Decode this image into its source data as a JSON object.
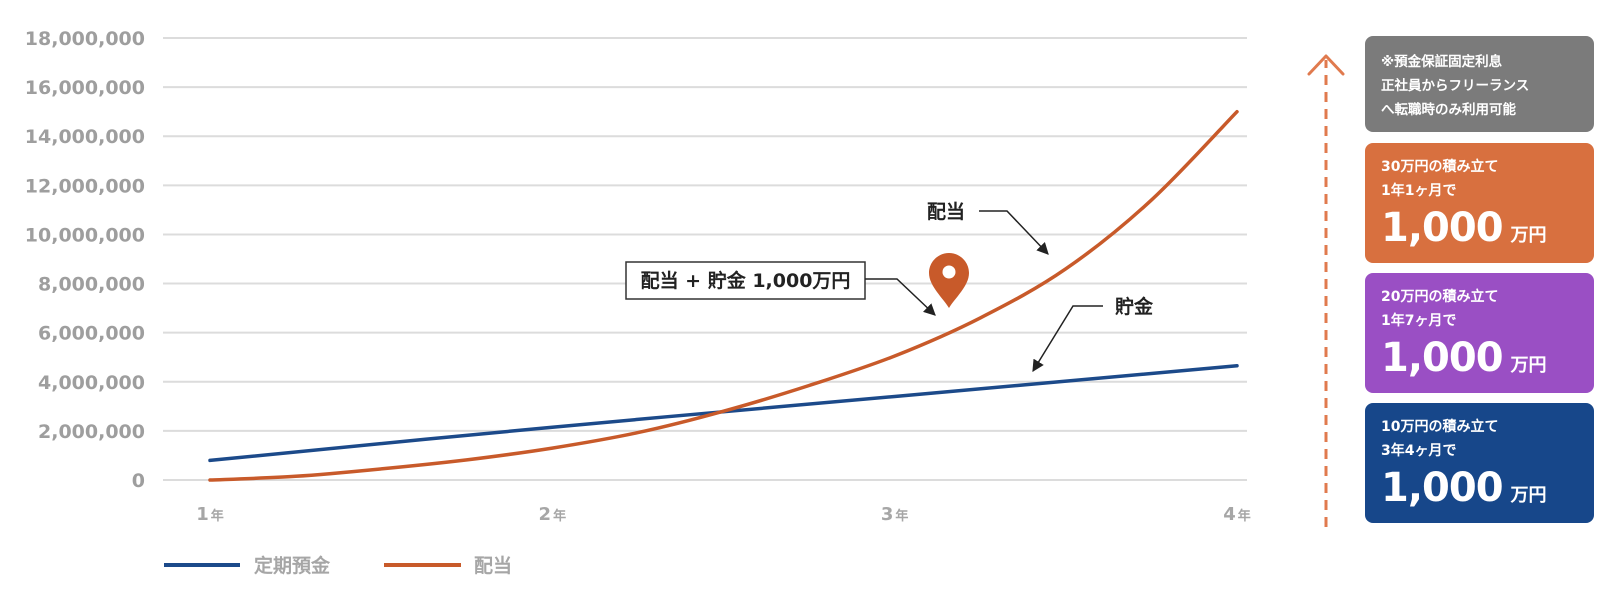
{
  "chart_data": {
    "type": "line",
    "y_ticks": [
      "18,000,000",
      "16,000,000",
      "14,000,000",
      "12,000,000",
      "10,000,000",
      "8,000,000",
      "6,000,000",
      "4,000,000",
      "2,000,000",
      "0"
    ],
    "ylim": [
      0,
      18000000
    ],
    "x_ticks": [
      {
        "num": "1",
        "unit": "年"
      },
      {
        "num": "2",
        "unit": "年"
      },
      {
        "num": "3",
        "unit": "年"
      },
      {
        "num": "4",
        "unit": "年"
      }
    ],
    "xlim": [
      1,
      4
    ],
    "grid": true,
    "series": [
      {
        "name": "定期預金",
        "color": "#1c4a8a",
        "points": [
          [
            1.0,
            800000
          ],
          [
            2.0,
            2150000
          ],
          [
            3.0,
            3400000
          ],
          [
            4.0,
            4650000
          ]
        ]
      },
      {
        "name": "配当",
        "color": "#c85a2a",
        "points": [
          [
            1.0,
            0
          ],
          [
            1.25,
            150000
          ],
          [
            1.5,
            450000
          ],
          [
            1.75,
            820000
          ],
          [
            2.0,
            1300000
          ],
          [
            2.25,
            1930000
          ],
          [
            2.5,
            2800000
          ],
          [
            2.75,
            3850000
          ],
          [
            3.0,
            5050000
          ],
          [
            3.25,
            6600000
          ],
          [
            3.5,
            8600000
          ],
          [
            3.75,
            11400000
          ],
          [
            4.0,
            15000000
          ]
        ]
      }
    ],
    "annotations": {
      "dividend_label": "配当",
      "savings_label": "貯金",
      "combined_label": "配当 + 貯金 1,000万円"
    },
    "legend": {
      "placement": "bottom-left"
    }
  },
  "sidebar": {
    "arrow_color": "#e07a4e",
    "note": {
      "color": "#7b7b7b",
      "lines": [
        "※預金保証固定利息",
        "正社員からフリーランス",
        "へ転職時のみ利用可能"
      ]
    },
    "cards": [
      {
        "color": "#d8703f",
        "line1": "30万円の積み立て",
        "line2": "1年1ヶ月で",
        "amount": "1,000",
        "unit": "万円"
      },
      {
        "color": "#9a4fc4",
        "line1": "20万円の積み立て",
        "line2": "1年7ヶ月で",
        "amount": "1,000",
        "unit": "万円"
      },
      {
        "color": "#17478a",
        "line1": "10万円の積み立て",
        "line2": "3年4ヶ月で",
        "amount": "1,000",
        "unit": "万円"
      }
    ]
  }
}
